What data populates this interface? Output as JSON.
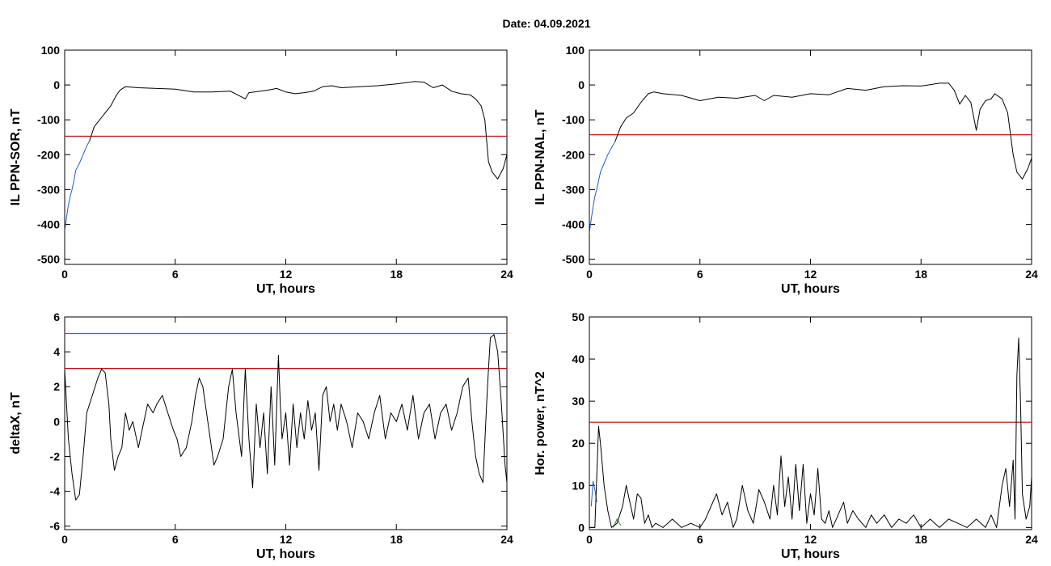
{
  "figure": {
    "date_label": "Date:  04.09.2021"
  },
  "colors": {
    "trace": "#000000",
    "threshold": "#c00000",
    "upper_threshold": "#1f6fd1",
    "highlight_blue": "#1f5fc8",
    "highlight_green": "#2a8a2a"
  },
  "chart_data": [
    {
      "id": "il-sor",
      "type": "line",
      "title": "",
      "xlabel": "UT, hours",
      "ylabel": "IL PPN-SOR, nT",
      "xlim": [
        0,
        24
      ],
      "ylim": [
        -515,
        100
      ],
      "xticks": [
        0,
        6,
        12,
        18,
        24
      ],
      "yticks": [
        100,
        0,
        -100,
        -200,
        -300,
        -400,
        -500
      ],
      "thresholds": [
        {
          "y": -147,
          "color": "threshold"
        }
      ],
      "series": [
        {
          "color": "highlight_blue",
          "x": [
            0,
            0.1,
            0.2,
            0.3,
            0.4,
            0.5,
            0.6,
            0.8,
            1.0,
            1.2,
            1.35
          ],
          "y": [
            -420,
            -380,
            -345,
            -320,
            -300,
            -275,
            -245,
            -225,
            -200,
            -175,
            -160
          ]
        },
        {
          "color": "trace",
          "x": [
            1.35,
            1.6,
            1.9,
            2.2,
            2.5,
            2.8,
            3.0,
            3.3,
            4,
            5,
            6,
            7,
            8,
            9,
            9.8,
            10,
            11,
            11.5,
            12,
            12.5,
            13,
            13.5,
            14,
            14.5,
            15,
            16,
            17,
            18,
            19,
            19.5,
            20,
            20.5,
            21,
            21.5,
            22,
            22.3,
            22.6,
            22.8,
            23.0,
            23.2,
            23.5,
            23.8,
            24
          ],
          "y": [
            -160,
            -120,
            -100,
            -80,
            -60,
            -30,
            -15,
            -5,
            -8,
            -10,
            -12,
            -20,
            -20,
            -18,
            -40,
            -22,
            -15,
            -10,
            -20,
            -25,
            -22,
            -18,
            -5,
            -2,
            -8,
            -5,
            -2,
            3,
            10,
            8,
            -8,
            0,
            -18,
            -25,
            -28,
            -40,
            -60,
            -100,
            -220,
            -250,
            -270,
            -240,
            -200
          ]
        }
      ]
    },
    {
      "id": "il-nal",
      "type": "line",
      "title": "",
      "xlabel": "UT, hours",
      "ylabel": "IL PPN-NAL, nT",
      "xlim": [
        0,
        24
      ],
      "ylim": [
        -515,
        100
      ],
      "xticks": [
        0,
        6,
        12,
        18,
        24
      ],
      "yticks": [
        100,
        0,
        -100,
        -200,
        -300,
        -400,
        -500
      ],
      "thresholds": [
        {
          "y": -143,
          "color": "threshold"
        }
      ],
      "series": [
        {
          "color": "highlight_blue",
          "x": [
            0,
            0.1,
            0.2,
            0.3,
            0.4,
            0.5,
            0.6,
            0.8,
            1.0,
            1.2,
            1.4
          ],
          "y": [
            -425,
            -385,
            -350,
            -320,
            -300,
            -275,
            -250,
            -225,
            -200,
            -180,
            -162
          ]
        },
        {
          "color": "trace",
          "x": [
            1.4,
            1.7,
            2.0,
            2.4,
            2.8,
            3.2,
            3.5,
            4,
            5,
            6,
            7,
            8,
            9,
            9.5,
            10,
            11,
            12,
            13,
            14,
            15,
            16,
            17,
            18,
            19,
            19.5,
            19.8,
            20.1,
            20.4,
            20.7,
            21.0,
            21.2,
            21.5,
            21.8,
            22.0,
            22.4,
            22.7,
            23.0,
            23.2,
            23.5,
            23.8,
            24
          ],
          "y": [
            -162,
            -120,
            -95,
            -80,
            -50,
            -25,
            -20,
            -25,
            -30,
            -45,
            -35,
            -38,
            -30,
            -45,
            -30,
            -35,
            -25,
            -28,
            -10,
            -15,
            -5,
            -2,
            -3,
            5,
            5,
            -15,
            -55,
            -30,
            -50,
            -130,
            -70,
            -45,
            -40,
            -25,
            -40,
            -80,
            -200,
            -250,
            -270,
            -240,
            -210
          ]
        }
      ]
    },
    {
      "id": "deltax",
      "type": "line",
      "title": "",
      "xlabel": "UT, hours",
      "ylabel": "deltaX, nT",
      "xlim": [
        0,
        24
      ],
      "ylim": [
        -6.2,
        6
      ],
      "xticks": [
        0,
        6,
        12,
        18,
        24
      ],
      "yticks": [
        6,
        4,
        2,
        0,
        -2,
        -4,
        -6
      ],
      "thresholds": [
        {
          "y": 5.05,
          "color": "upper_threshold"
        },
        {
          "y": 3.05,
          "color": "threshold"
        }
      ],
      "series": [
        {
          "color": "trace",
          "x": [
            0,
            0.2,
            0.4,
            0.6,
            0.8,
            1.0,
            1.2,
            1.5,
            1.8,
            2.0,
            2.2,
            2.4,
            2.5,
            2.7,
            2.9,
            3.1,
            3.3,
            3.5,
            3.7,
            4.0,
            4.2,
            4.5,
            4.8,
            5.0,
            5.3,
            5.6,
            5.9,
            6.1,
            6.3,
            6.6,
            6.9,
            7.1,
            7.3,
            7.5,
            7.7,
            7.9,
            8.1,
            8.3,
            8.6,
            8.9,
            9.1,
            9.3,
            9.6,
            9.8,
            10.0,
            10.2,
            10.4,
            10.6,
            10.8,
            11.0,
            11.2,
            11.4,
            11.6,
            11.7,
            11.8,
            12.0,
            12.2,
            12.4,
            12.6,
            12.8,
            13.0,
            13.2,
            13.4,
            13.6,
            13.8,
            14.0,
            14.2,
            14.4,
            14.6,
            14.8,
            15.0,
            15.3,
            15.6,
            15.9,
            16.2,
            16.5,
            16.8,
            17.1,
            17.4,
            17.7,
            18.0,
            18.3,
            18.6,
            18.9,
            19.2,
            19.5,
            19.8,
            20.1,
            20.4,
            20.7,
            21.0,
            21.3,
            21.6,
            21.9,
            22.1,
            22.3,
            22.5,
            22.7,
            22.9,
            23.0,
            23.1,
            23.3,
            23.5,
            23.7,
            23.9,
            24
          ],
          "y": [
            3.0,
            -1.0,
            -3.0,
            -4.5,
            -4.2,
            -2.0,
            0.5,
            1.5,
            2.5,
            3.0,
            2.8,
            1.0,
            -1.0,
            -2.8,
            -2.0,
            -1.5,
            0.5,
            -0.5,
            0.0,
            -1.5,
            -0.5,
            1.0,
            0.5,
            1.0,
            1.5,
            0.5,
            -0.5,
            -1.0,
            -2.0,
            -1.5,
            0.0,
            1.5,
            2.5,
            2.0,
            0.5,
            -1.0,
            -2.5,
            -2.0,
            -1.0,
            2.0,
            3.0,
            0.5,
            -2.0,
            3.0,
            -1.0,
            -3.8,
            1.0,
            -1.5,
            0.5,
            -3.0,
            2.0,
            -2.5,
            3.8,
            1.0,
            -1.0,
            0.5,
            -2.5,
            1.0,
            -1.5,
            0.5,
            -1.0,
            1.2,
            -0.5,
            0.5,
            -2.8,
            1.5,
            2.0,
            0.0,
            1.0,
            -0.5,
            1.0,
            0.0,
            -1.5,
            0.5,
            0.0,
            -1.0,
            0.5,
            1.5,
            -1.0,
            0.5,
            0.0,
            1.0,
            -0.5,
            1.5,
            -1.0,
            0.5,
            1.0,
            -1.0,
            0.5,
            1.0,
            -0.5,
            0.5,
            2.0,
            2.5,
            0.0,
            -2.0,
            -3.0,
            -3.5,
            1.0,
            3.0,
            4.8,
            5.0,
            4.0,
            1.0,
            -2.5,
            -3.5
          ]
        }
      ]
    },
    {
      "id": "hor-power",
      "type": "line",
      "title": "",
      "xlabel": "UT, hours",
      "ylabel": "Hor. power, nT^2",
      "xlim": [
        0,
        24
      ],
      "ylim": [
        -0.5,
        50
      ],
      "xticks": [
        0,
        6,
        12,
        18,
        24
      ],
      "yticks": [
        50,
        40,
        30,
        20,
        10,
        0
      ],
      "thresholds": [
        {
          "y": 25,
          "color": "threshold"
        }
      ],
      "series": [
        {
          "color": "highlight_blue",
          "x": [
            0.1,
            0.2,
            0.3,
            0.4
          ],
          "y": [
            5,
            11,
            9,
            6
          ]
        },
        {
          "color": "highlight_green",
          "x": [
            1.3,
            1.5,
            1.7
          ],
          "y": [
            0,
            2,
            0.5
          ]
        },
        {
          "color": "trace",
          "x": [
            0,
            0.3,
            0.5,
            0.6,
            0.8,
            1.0,
            1.2,
            1.5,
            1.8,
            2.0,
            2.2,
            2.4,
            2.6,
            2.8,
            3.0,
            3.2,
            3.4,
            3.6,
            4.0,
            4.5,
            5.0,
            5.5,
            6.0,
            6.3,
            6.6,
            6.9,
            7.2,
            7.5,
            7.8,
            8.0,
            8.3,
            8.6,
            8.9,
            9.2,
            9.5,
            9.8,
            10.0,
            10.2,
            10.4,
            10.6,
            10.8,
            11.0,
            11.2,
            11.4,
            11.6,
            11.8,
            12.0,
            12.2,
            12.4,
            12.6,
            12.8,
            13.0,
            13.2,
            13.5,
            13.8,
            14.0,
            14.3,
            14.6,
            15.0,
            15.3,
            15.6,
            16.0,
            16.4,
            16.8,
            17.2,
            17.6,
            18.0,
            18.5,
            19.0,
            19.5,
            20.0,
            20.5,
            21.0,
            21.5,
            21.8,
            22.1,
            22.4,
            22.6,
            22.8,
            23.0,
            23.1,
            23.2,
            23.3,
            23.4,
            23.5,
            23.7,
            23.9,
            24
          ],
          "y": [
            0,
            0,
            24,
            20,
            10,
            4,
            0,
            1,
            5,
            10,
            6,
            2,
            8,
            7,
            1,
            3,
            0,
            1,
            0,
            2,
            0,
            1,
            0,
            2,
            5,
            8,
            3,
            6,
            0,
            2,
            10,
            4,
            1,
            9,
            6,
            2,
            10,
            3,
            17,
            5,
            12,
            2,
            15,
            4,
            15,
            1,
            8,
            3,
            14,
            2,
            1,
            4,
            0,
            3,
            6,
            1,
            4,
            2,
            0,
            3,
            1,
            3,
            0,
            2,
            1,
            3,
            0,
            2,
            0,
            2,
            1,
            0,
            2,
            0,
            3,
            0,
            10,
            14,
            5,
            16,
            2,
            36,
            45,
            30,
            8,
            2,
            5,
            12
          ]
        }
      ]
    }
  ]
}
